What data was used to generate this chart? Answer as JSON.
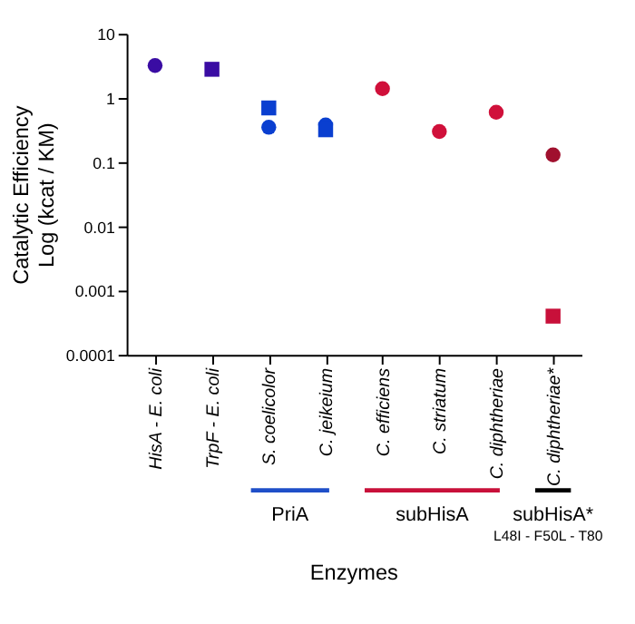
{
  "chart_data": {
    "type": "scatter",
    "xlabel": "Enzymes",
    "ylabel": "Catalytic Efficiency\nLog (kcat / KM)",
    "categories": [
      "HisA - E. coli",
      "TrpF - E. coli",
      "S. coelicolor",
      "C. jeikeium",
      "C. efficiens",
      "C. striatum",
      "C. diphtheriae",
      "C. diphtheriae*"
    ],
    "series": [
      {
        "marker": "circle",
        "values": [
          3.2,
          null,
          0.35,
          0.38,
          1.4,
          0.3,
          0.6,
          0.13
        ],
        "colors": [
          "#3a0ca3",
          null,
          "#0a3fd0",
          "#0a3fd0",
          "#d0103a",
          "#d0103a",
          "#d0103a",
          "#a0102e"
        ]
      },
      {
        "marker": "square",
        "values": [
          null,
          2.8,
          0.7,
          0.32,
          null,
          null,
          null,
          0.0004
        ],
        "colors": [
          null,
          "#3a0ca3",
          "#0a3fd0",
          "#0a3fd0",
          null,
          null,
          null,
          "#c8103a"
        ]
      }
    ],
    "log": "y",
    "ylim": [
      0.0001,
      10
    ],
    "yticks": [
      0.0001,
      0.001,
      0.01,
      0.1,
      1,
      10
    ],
    "grid": false,
    "annotations": [
      "PriA",
      "subHisA",
      "subHisA*",
      "L48I - F50L - T80"
    ]
  }
}
